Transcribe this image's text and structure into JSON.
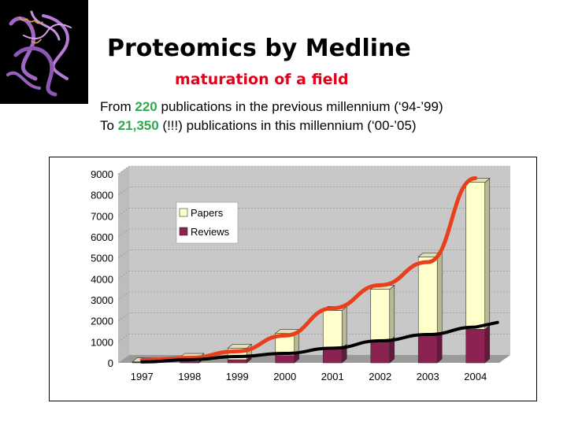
{
  "title": "Proteomics by Medline",
  "subtitle": "maturation of a field",
  "description": {
    "line1_prefix": "From ",
    "line1_number": "220",
    "line1_suffix": " publications in the previous millennium (‘94-’99)",
    "line2_prefix": "To ",
    "line2_number": "21,350",
    "line2_suffix": "  (!!!) publications in this millennium (‘00-’05)"
  },
  "decoration": {
    "protein_icon": "protein-ribbon-structure-icon",
    "protein_color": "#a066c4",
    "title_color": "#000000",
    "subtitle_color": "#e2001a",
    "highlight_color": "#2fa84f"
  },
  "chart_data": {
    "type": "bar",
    "stacked": true,
    "categories": [
      "1997",
      "1998",
      "1999",
      "2000",
      "2001",
      "2002",
      "2003",
      "2004"
    ],
    "series": [
      {
        "name": "Reviews",
        "color": "#8b2252",
        "values": [
          30,
          60,
          150,
          350,
          700,
          1050,
          1300,
          1600
        ]
      },
      {
        "name": "Papers",
        "color": "#ffffcc",
        "values": [
          20,
          200,
          550,
          1050,
          1800,
          2450,
          3750,
          7000
        ]
      }
    ],
    "trendlines": [
      {
        "color": "#e8401c",
        "values": [
          130,
          240,
          550,
          1300,
          2600,
          3700,
          4800,
          8800
        ]
      },
      {
        "color": "#000000",
        "values": [
          40,
          150,
          300,
          450,
          700,
          1050,
          1350,
          1700
        ]
      }
    ],
    "yticks": [
      0,
      1000,
      2000,
      3000,
      4000,
      5000,
      6000,
      7000,
      8000,
      9000
    ],
    "ylim": [
      0,
      9000
    ],
    "grid": true,
    "legend_position": "top-left"
  }
}
